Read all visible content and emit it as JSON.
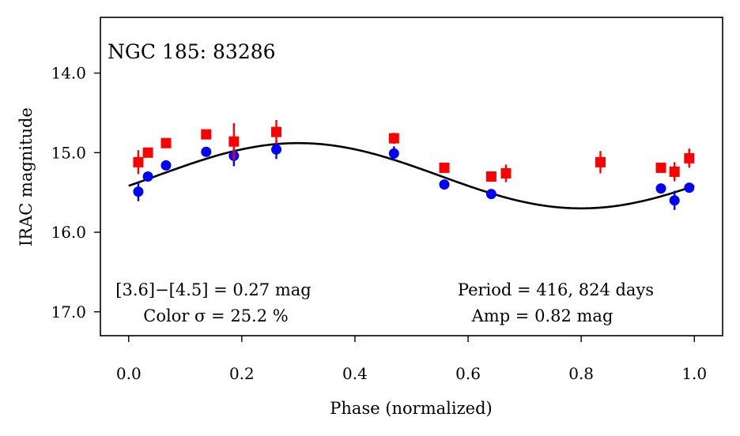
{
  "chart_data": {
    "type": "scatter",
    "title": "NGC 185:  83286",
    "xlabel": "Phase (normalized)",
    "ylabel": "IRAC magnitude",
    "xlim": [
      -0.05,
      1.05
    ],
    "ylim": [
      17.3,
      13.3
    ],
    "y_inverted": true,
    "grid": false,
    "x_ticks": [
      0.0,
      0.2,
      0.4,
      0.6,
      0.8,
      1.0
    ],
    "x_tick_labels": [
      "0.0",
      "0.2",
      "0.4",
      "0.6",
      "0.8",
      "1.0"
    ],
    "y_ticks": [
      14.0,
      15.0,
      16.0,
      17.0
    ],
    "y_tick_labels": [
      "14.0",
      "15.0",
      "16.0",
      "17.0"
    ],
    "annotations": {
      "color_line1": "[3.6]−[4.5] = 0.27 mag",
      "color_line2": "Color σ = 25.2 %",
      "period_line1": "Period = 416, 824 days",
      "period_line2": "Amp = 0.82 mag"
    },
    "series": [
      {
        "marker": "circle",
        "color": "#0000ff",
        "points": [
          {
            "x": 0.017,
            "y": 15.49,
            "err": 0.12
          },
          {
            "x": 0.034,
            "y": 15.3,
            "err": 0.05
          },
          {
            "x": 0.066,
            "y": 15.16,
            "err": 0.04
          },
          {
            "x": 0.137,
            "y": 14.99,
            "err": 0.04
          },
          {
            "x": 0.186,
            "y": 15.04,
            "err": 0.13
          },
          {
            "x": 0.261,
            "y": 14.96,
            "err": 0.12
          },
          {
            "x": 0.469,
            "y": 15.01,
            "err": 0.09
          },
          {
            "x": 0.558,
            "y": 15.4,
            "err": 0.04
          },
          {
            "x": 0.641,
            "y": 15.52,
            "err": 0.04
          },
          {
            "x": 0.941,
            "y": 15.45,
            "err": 0.04
          },
          {
            "x": 0.965,
            "y": 15.6,
            "err": 0.12
          },
          {
            "x": 0.991,
            "y": 15.44,
            "err": 0.05
          }
        ]
      },
      {
        "marker": "square",
        "color": "#ff0000",
        "points": [
          {
            "x": 0.017,
            "y": 15.12,
            "err": 0.15
          },
          {
            "x": 0.034,
            "y": 15.0,
            "err": 0.06
          },
          {
            "x": 0.066,
            "y": 14.88,
            "err": 0.05
          },
          {
            "x": 0.137,
            "y": 14.77,
            "err": 0.04
          },
          {
            "x": 0.186,
            "y": 14.86,
            "err": 0.23
          },
          {
            "x": 0.261,
            "y": 14.74,
            "err": 0.15
          },
          {
            "x": 0.469,
            "y": 14.82,
            "err": 0.07
          },
          {
            "x": 0.558,
            "y": 15.19,
            "err": 0.04
          },
          {
            "x": 0.641,
            "y": 15.3,
            "err": 0.04
          },
          {
            "x": 0.667,
            "y": 15.26,
            "err": 0.11
          },
          {
            "x": 0.834,
            "y": 15.12,
            "err": 0.14
          },
          {
            "x": 0.941,
            "y": 15.19,
            "err": 0.04
          },
          {
            "x": 0.965,
            "y": 15.24,
            "err": 0.12
          },
          {
            "x": 0.991,
            "y": 15.07,
            "err": 0.12
          }
        ]
      }
    ],
    "model_curve": {
      "color": "#000000",
      "mean_mag": 15.29,
      "amplitude": 0.82,
      "phase_of_max": 0.3
    }
  }
}
